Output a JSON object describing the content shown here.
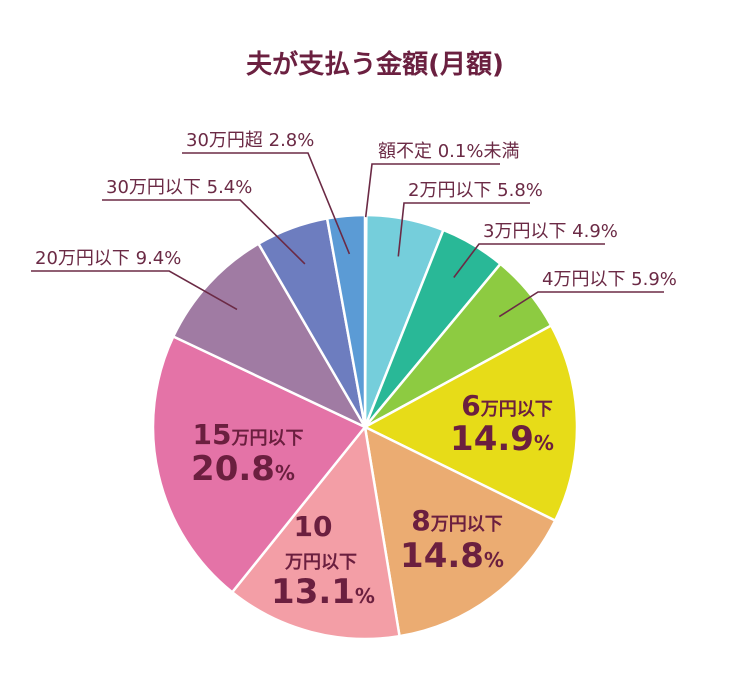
{
  "chart_data": {
    "type": "pie",
    "title": "夫が支払う金額(月額)",
    "slices": [
      {
        "label": "額不定",
        "value": 0.1,
        "value_label": "0.1%",
        "color": "#5b9bd5",
        "label_style": "outer-right",
        "label_line": "額不定 0.1%未満"
      },
      {
        "label": "2万円以下",
        "value": 5.8,
        "value_label": "5.8%",
        "color": "#75cedb",
        "label_style": "outer-right"
      },
      {
        "label": "3万円以下",
        "value": 4.9,
        "value_label": "4.9%",
        "color": "#29b897",
        "label_style": "outer-right"
      },
      {
        "label": "4万円以下",
        "value": 5.9,
        "value_label": "5.9%",
        "color": "#8dcb41",
        "label_style": "outer-right"
      },
      {
        "label": "6万円以下",
        "value": 14.9,
        "value_label": "14.9",
        "color": "#e7dc18",
        "label_style": "inner",
        "num": "6",
        "unit": "万円以下"
      },
      {
        "label": "8万円以下",
        "value": 14.8,
        "value_label": "14.8",
        "color": "#ebac72",
        "label_style": "inner",
        "num": "8",
        "unit": "万円以下"
      },
      {
        "label": "10万円以下",
        "value": 13.1,
        "value_label": "13.1",
        "color": "#f39ea6",
        "label_style": "inner",
        "num": "10",
        "unit": "万円以下"
      },
      {
        "label": "15万円以下",
        "value": 20.8,
        "value_label": "20.8",
        "color": "#e473a7",
        "label_style": "inner",
        "num": "15",
        "unit": "万円以下"
      },
      {
        "label": "20万円以下",
        "value": 9.4,
        "value_label": "9.4%",
        "color": "#a07ba3",
        "label_style": "outer-left"
      },
      {
        "label": "30万円以下",
        "value": 5.4,
        "value_label": "5.4%",
        "color": "#6d7dbf",
        "label_style": "outer-left"
      },
      {
        "label": "30万円超",
        "value": 2.8,
        "value_label": "2.8%",
        "color": "#5b9bd5",
        "label_style": "outer-left"
      }
    ],
    "percent_sign": "%",
    "legend": "none"
  }
}
